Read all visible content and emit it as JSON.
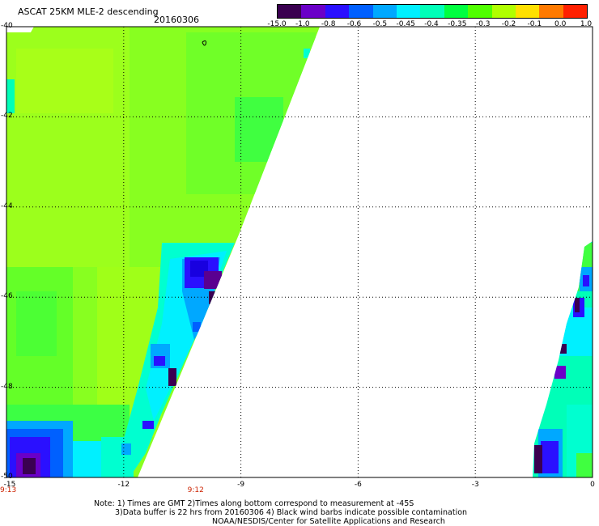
{
  "header": {
    "title": "ASCAT 25KM MLE-2 descending",
    "date": "20160306"
  },
  "colorbar": {
    "labels": [
      "-15.0",
      "-1.0",
      "-0.8",
      "-0.6",
      "-0.5",
      "-0.45",
      "-0.4",
      "-0.35",
      "-0.3",
      "-0.2",
      "-0.1",
      "0.0",
      "1.0"
    ],
    "colors": [
      "#3a0050",
      "#6a00c8",
      "#2a10ff",
      "#0060ff",
      "#00a8ff",
      "#00f0ff",
      "#00ffb8",
      "#00ff40",
      "#50ff00",
      "#b0ff00",
      "#ffe000",
      "#ff7a00",
      "#ff2000"
    ]
  },
  "axes": {
    "y_ticks": [
      {
        "value": -40,
        "label": "-40"
      },
      {
        "value": -42,
        "label": "-42"
      },
      {
        "value": -44,
        "label": "-44"
      },
      {
        "value": -46,
        "label": "-46"
      },
      {
        "value": -48,
        "label": "-48"
      },
      {
        "value": -50,
        "label": "-50"
      }
    ],
    "x_ticks": [
      {
        "value": -15,
        "label": "-15"
      },
      {
        "value": -12,
        "label": "-12"
      },
      {
        "value": -9,
        "label": "-9"
      },
      {
        "value": -6,
        "label": "-6"
      },
      {
        "value": -3,
        "label": "-3"
      },
      {
        "value": 0,
        "label": "0"
      }
    ],
    "lon_range": [
      -15,
      0
    ],
    "lat_range": [
      -50,
      -40
    ]
  },
  "times": [
    {
      "label": "9:13",
      "lon": -15
    },
    {
      "label": "9:12",
      "lon": -10.2
    }
  ],
  "notes": {
    "line1": "Note: 1) Times are GMT 2)Times along bottom correspond to measurement at -45S",
    "line2": "3)Data buffer is 22 hrs from 20160306 4) Black wind barbs indicate possible contamination",
    "line3": "NOAA/NESDIS/Center for Satellite Applications and Research"
  }
}
